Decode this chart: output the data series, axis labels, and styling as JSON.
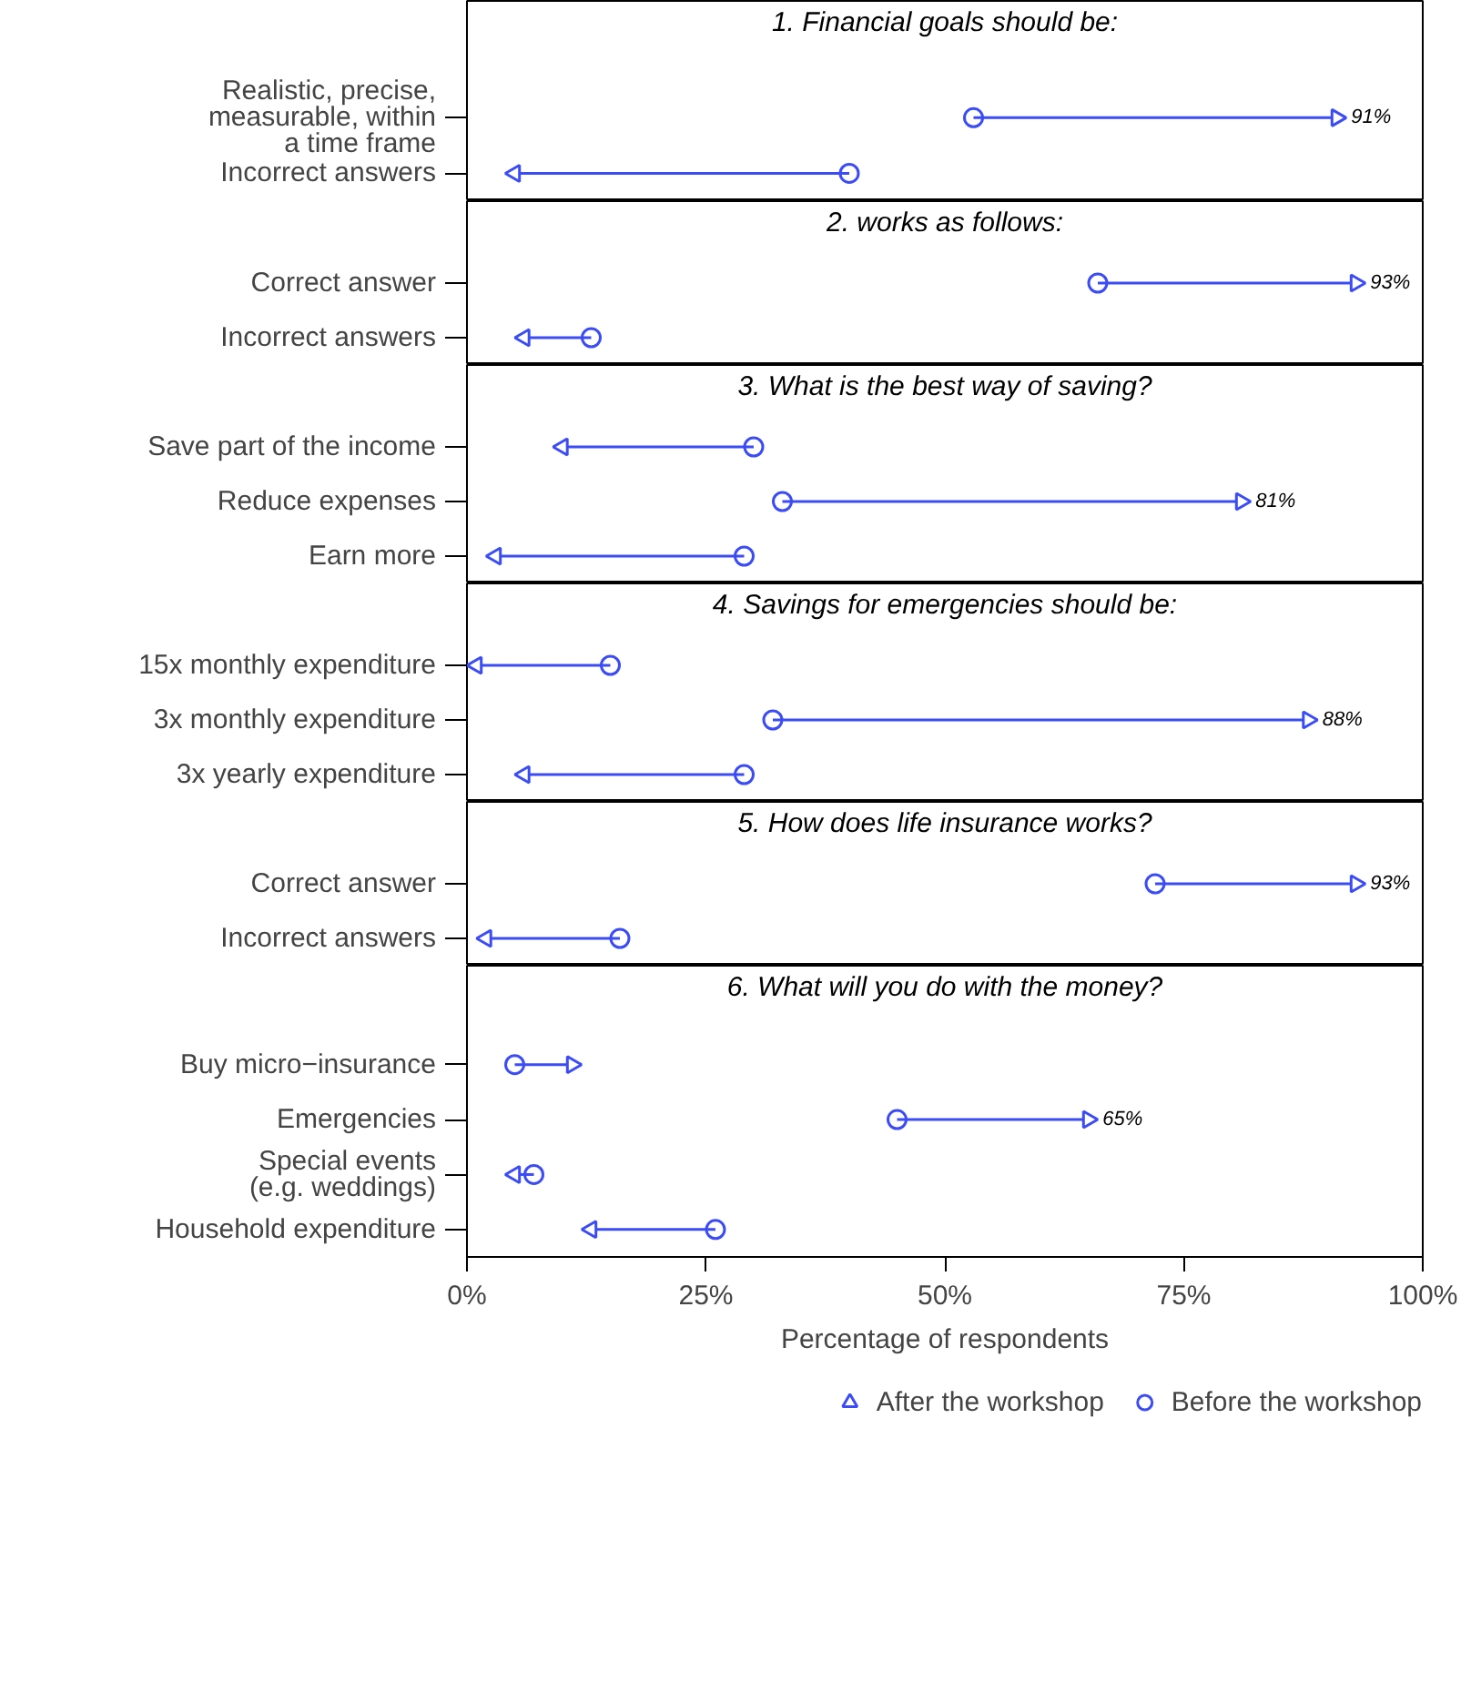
{
  "chart_data": [
    {
      "type": "scatter",
      "title": "1. Financial goals should be:",
      "categories": [
        "Realistic, precise,\nmeasurable, within\na time frame",
        "Incorrect answers"
      ],
      "series": [
        {
          "color": "#3b4cf5",
          "marker": "circle",
          "values": [
            53,
            40
          ]
        },
        {
          "color": "#3b4cf5",
          "marker": "triangle",
          "values": [
            91,
            5
          ],
          "value_labels": [
            "91%",
            null
          ]
        }
      ],
      "xlim": [
        0,
        100
      ],
      "tick_labels": "y",
      "orientation": "horizontal"
    },
    {
      "type": "scatter",
      "title": "2. works as follows:",
      "categories": [
        "Correct answer",
        "Incorrect answers"
      ],
      "series": [
        {
          "color": "#3b4cf5",
          "marker": "circle",
          "values": [
            66,
            13
          ]
        },
        {
          "color": "#3b4cf5",
          "marker": "triangle",
          "values": [
            93,
            6
          ],
          "value_labels": [
            "93%",
            null
          ]
        }
      ],
      "xlim": [
        0,
        100
      ],
      "tick_labels": "y",
      "orientation": "horizontal"
    },
    {
      "type": "scatter",
      "title": "3. What is the best way of saving?",
      "categories": [
        "Save part of the income",
        "Reduce expenses",
        "Earn more"
      ],
      "series": [
        {
          "color": "#3b4cf5",
          "marker": "circle",
          "values": [
            30,
            33,
            29
          ]
        },
        {
          "color": "#3b4cf5",
          "marker": "triangle",
          "values": [
            10,
            81,
            3
          ],
          "value_labels": [
            null,
            "81%",
            null
          ]
        }
      ],
      "xlim": [
        0,
        100
      ],
      "tick_labels": "y",
      "orientation": "horizontal"
    },
    {
      "type": "scatter",
      "title": "4. Savings for emergencies should be:",
      "categories": [
        "15x monthly expenditure",
        "3x monthly expenditure",
        "3x yearly expenditure"
      ],
      "series": [
        {
          "color": "#3b4cf5",
          "marker": "circle",
          "values": [
            15,
            32,
            29
          ]
        },
        {
          "color": "#3b4cf5",
          "marker": "triangle",
          "values": [
            1,
            88,
            6
          ],
          "value_labels": [
            null,
            "88%",
            null
          ]
        }
      ],
      "xlim": [
        0,
        100
      ],
      "tick_labels": "y",
      "orientation": "horizontal"
    },
    {
      "type": "scatter",
      "title": "5. How does life insurance works?",
      "categories": [
        "Correct answer",
        "Incorrect answers"
      ],
      "series": [
        {
          "color": "#3b4cf5",
          "marker": "circle",
          "values": [
            72,
            16
          ]
        },
        {
          "color": "#3b4cf5",
          "marker": "triangle",
          "values": [
            93,
            2
          ],
          "value_labels": [
            "93%",
            null
          ]
        }
      ],
      "xlim": [
        0,
        100
      ],
      "tick_labels": "y",
      "orientation": "horizontal"
    },
    {
      "type": "scatter",
      "title": "6. What will you do with the money?",
      "categories": [
        "Buy micro−insurance",
        "Emergencies",
        "Special events\n(e.g. weddings)",
        "Household expenditure"
      ],
      "series": [
        {
          "name": "Before the workshop",
          "color": "#3b4cf5",
          "marker": "circle",
          "values": [
            5,
            45,
            7,
            26
          ]
        },
        {
          "name": "After the workshop",
          "color": "#3b4cf5",
          "marker": "triangle",
          "values": [
            11,
            65,
            5,
            13
          ],
          "value_labels": [
            null,
            "65%",
            null,
            null
          ]
        }
      ],
      "xlim": [
        0,
        100
      ],
      "xticks": [
        {
          "value": 0,
          "label": "0%"
        },
        {
          "value": 25,
          "label": "25%"
        },
        {
          "value": 50,
          "label": "50%"
        },
        {
          "value": 75,
          "label": "75%"
        },
        {
          "value": 100,
          "label": "100%"
        }
      ],
      "xlabel": "Percentage of respondents",
      "legend": "bottom",
      "orientation": "horizontal"
    }
  ]
}
